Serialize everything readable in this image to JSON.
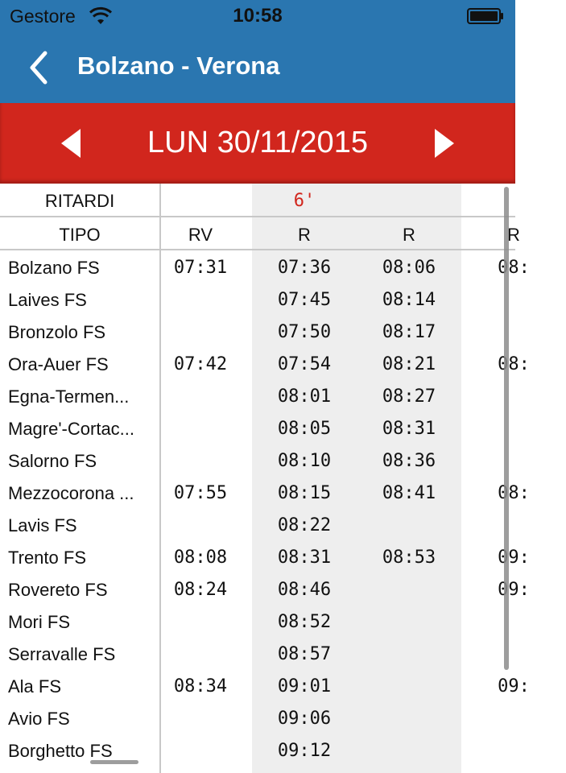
{
  "status_bar": {
    "carrier": "Gestore",
    "time": "10:58"
  },
  "header": {
    "title": "Bolzano - Verona"
  },
  "date_bar": {
    "date": "LUN 30/11/2015"
  },
  "table": {
    "delays_label": "RITARDI",
    "type_label": "TIPO",
    "trains": [
      {
        "type": "RV",
        "delay": ""
      },
      {
        "type": "R",
        "delay": "6'"
      },
      {
        "type": "R",
        "delay": ""
      },
      {
        "type": "R",
        "delay": ""
      }
    ],
    "stations": [
      {
        "name": "Bolzano FS",
        "times": [
          "07:31",
          "07:36",
          "08:06",
          "08:"
        ]
      },
      {
        "name": "Laives FS",
        "times": [
          "",
          "07:45",
          "08:14",
          ""
        ]
      },
      {
        "name": "Bronzolo FS",
        "times": [
          "",
          "07:50",
          "08:17",
          ""
        ]
      },
      {
        "name": "Ora-Auer FS",
        "times": [
          "07:42",
          "07:54",
          "08:21",
          "08:"
        ]
      },
      {
        "name": "Egna-Termen...",
        "times": [
          "",
          "08:01",
          "08:27",
          ""
        ]
      },
      {
        "name": "Magre'-Cortac...",
        "times": [
          "",
          "08:05",
          "08:31",
          ""
        ]
      },
      {
        "name": "Salorno FS",
        "times": [
          "",
          "08:10",
          "08:36",
          ""
        ]
      },
      {
        "name": "Mezzocorona ...",
        "times": [
          "07:55",
          "08:15",
          "08:41",
          "08:"
        ]
      },
      {
        "name": "Lavis FS",
        "times": [
          "",
          "08:22",
          "",
          ""
        ]
      },
      {
        "name": "Trento FS",
        "times": [
          "08:08",
          "08:31",
          "08:53",
          "09:"
        ]
      },
      {
        "name": "Rovereto FS",
        "times": [
          "08:24",
          "08:46",
          "",
          "09:"
        ]
      },
      {
        "name": "Mori FS",
        "times": [
          "",
          "08:52",
          "",
          ""
        ]
      },
      {
        "name": "Serravalle FS",
        "times": [
          "",
          "08:57",
          "",
          ""
        ]
      },
      {
        "name": "Ala FS",
        "times": [
          "08:34",
          "09:01",
          "",
          "09:"
        ]
      },
      {
        "name": "Avio FS",
        "times": [
          "",
          "09:06",
          "",
          ""
        ]
      },
      {
        "name": "Borghetto FS",
        "times": [
          "",
          "09:12",
          "",
          ""
        ]
      }
    ]
  },
  "colors": {
    "header_blue": "#2a76b0",
    "date_red": "#d1261d",
    "delay_red": "#d1261d",
    "shade_gray": "#eeeeee"
  },
  "icons": {
    "back": "chevron-left-icon",
    "prev": "triangle-left-icon",
    "next": "triangle-right-icon",
    "wifi": "wifi-icon",
    "battery": "battery-icon"
  }
}
